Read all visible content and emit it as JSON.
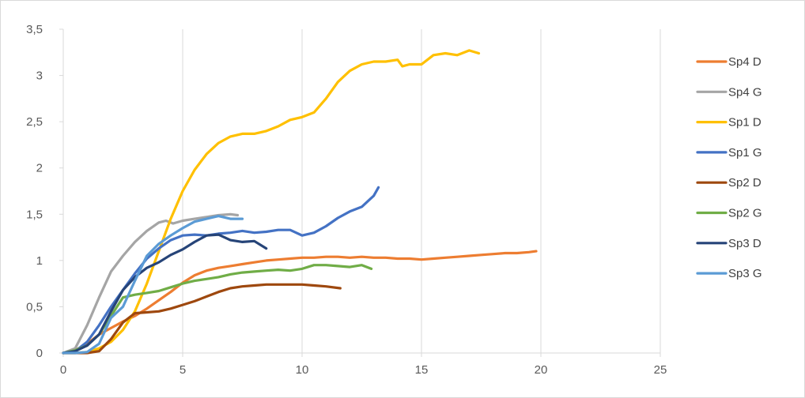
{
  "chart_data": {
    "type": "line",
    "title": "",
    "xlabel": "",
    "ylabel": "",
    "xlim": [
      0,
      25
    ],
    "ylim": [
      0,
      3.5
    ],
    "x_ticks": [
      0,
      5,
      10,
      15,
      20,
      25
    ],
    "y_ticks": [
      0,
      0.5,
      1,
      1.5,
      2,
      2.5,
      3,
      3.5
    ],
    "x_tick_labels": [
      "0",
      "5",
      "10",
      "15",
      "20",
      "25"
    ],
    "y_tick_labels": [
      "0",
      "0,5",
      "1",
      "1,5",
      "2",
      "2,5",
      "3",
      "3,5"
    ],
    "grid": "vertical",
    "legend_position": "right",
    "series": [
      {
        "name": "Sp4 D",
        "color": "#ED7D31",
        "x": [
          0,
          0.5,
          1,
          1.5,
          2,
          2.5,
          3,
          3.5,
          4,
          4.5,
          5,
          5.5,
          6,
          6.5,
          7,
          7.5,
          8,
          8.5,
          9,
          9.5,
          10,
          10.5,
          11,
          11.5,
          12,
          12.5,
          13,
          13.5,
          14,
          14.5,
          15,
          15.5,
          16,
          16.5,
          17,
          17.5,
          18,
          18.5,
          19,
          19.5,
          19.8
        ],
        "y": [
          0,
          0.03,
          0.1,
          0.2,
          0.27,
          0.34,
          0.4,
          0.48,
          0.57,
          0.66,
          0.76,
          0.84,
          0.89,
          0.92,
          0.94,
          0.96,
          0.98,
          1.0,
          1.01,
          1.02,
          1.03,
          1.03,
          1.04,
          1.04,
          1.03,
          1.04,
          1.03,
          1.03,
          1.02,
          1.02,
          1.01,
          1.02,
          1.03,
          1.04,
          1.05,
          1.06,
          1.07,
          1.08,
          1.08,
          1.09,
          1.1
        ]
      },
      {
        "name": "Sp4 G",
        "color": "#A5A5A5",
        "x": [
          0,
          0.5,
          1,
          1.5,
          2,
          2.5,
          3,
          3.5,
          4,
          4.3,
          4.6,
          5,
          5.5,
          6,
          6.5,
          7,
          7.3
        ],
        "y": [
          0,
          0.05,
          0.3,
          0.6,
          0.88,
          1.05,
          1.2,
          1.32,
          1.41,
          1.43,
          1.4,
          1.43,
          1.45,
          1.47,
          1.49,
          1.5,
          1.49
        ]
      },
      {
        "name": "Sp1 D",
        "color": "#FFC000",
        "x": [
          0,
          0.5,
          1,
          1.5,
          2,
          2.5,
          3,
          3.5,
          4,
          4.5,
          5,
          5.5,
          6,
          6.5,
          7,
          7.5,
          8,
          8.5,
          9,
          9.5,
          10,
          10.5,
          11,
          11.5,
          12,
          12.5,
          13,
          13.5,
          14,
          14.2,
          14.5,
          15,
          15.5,
          16,
          16.5,
          17,
          17.4
        ],
        "y": [
          0,
          0,
          0.01,
          0.05,
          0.12,
          0.25,
          0.45,
          0.75,
          1.1,
          1.45,
          1.75,
          1.98,
          2.15,
          2.27,
          2.34,
          2.37,
          2.37,
          2.4,
          2.45,
          2.52,
          2.55,
          2.6,
          2.75,
          2.93,
          3.05,
          3.12,
          3.15,
          3.15,
          3.17,
          3.1,
          3.12,
          3.12,
          3.22,
          3.24,
          3.22,
          3.27,
          3.24
        ]
      },
      {
        "name": "Sp1 G",
        "color": "#4472C4",
        "x": [
          0,
          0.5,
          1,
          1.5,
          2,
          2.5,
          3,
          3.5,
          4,
          4.5,
          5,
          5.5,
          6,
          6.5,
          7,
          7.5,
          8,
          8.5,
          9,
          9.5,
          10,
          10.5,
          11,
          11.5,
          12,
          12.5,
          13,
          13.2
        ],
        "y": [
          0,
          0.02,
          0.12,
          0.3,
          0.5,
          0.68,
          0.86,
          1.02,
          1.13,
          1.22,
          1.27,
          1.28,
          1.27,
          1.29,
          1.3,
          1.32,
          1.3,
          1.31,
          1.33,
          1.33,
          1.27,
          1.3,
          1.37,
          1.46,
          1.53,
          1.58,
          1.7,
          1.79
        ]
      },
      {
        "name": "Sp2 D",
        "color": "#9E480E",
        "x": [
          0,
          0.5,
          1,
          1.5,
          2,
          2.5,
          3,
          3.5,
          4,
          4.5,
          5,
          5.5,
          6,
          6.5,
          7,
          7.5,
          8,
          8.5,
          9,
          9.5,
          10,
          10.5,
          11,
          11.6
        ],
        "y": [
          0,
          0,
          0,
          0.02,
          0.15,
          0.33,
          0.43,
          0.44,
          0.45,
          0.48,
          0.52,
          0.56,
          0.61,
          0.66,
          0.7,
          0.72,
          0.73,
          0.74,
          0.74,
          0.74,
          0.74,
          0.73,
          0.72,
          0.7
        ]
      },
      {
        "name": "Sp2 G",
        "color": "#70AD47",
        "x": [
          0,
          0.5,
          1,
          1.5,
          2,
          2.5,
          3,
          3.5,
          4,
          4.5,
          5,
          5.5,
          6,
          6.5,
          7,
          7.5,
          8,
          8.5,
          9,
          9.5,
          10,
          10.5,
          11,
          11.5,
          12,
          12.5,
          12.9
        ],
        "y": [
          0,
          0.03,
          0.08,
          0.2,
          0.4,
          0.6,
          0.63,
          0.65,
          0.67,
          0.71,
          0.75,
          0.78,
          0.8,
          0.82,
          0.85,
          0.87,
          0.88,
          0.89,
          0.9,
          0.89,
          0.91,
          0.95,
          0.95,
          0.94,
          0.93,
          0.95,
          0.91
        ]
      },
      {
        "name": "Sp3 D",
        "color": "#264478",
        "x": [
          0,
          0.5,
          1,
          1.5,
          2,
          2.5,
          3,
          3.5,
          4,
          4.5,
          5,
          5.5,
          6,
          6.5,
          7,
          7.5,
          8,
          8.5
        ],
        "y": [
          0,
          0.02,
          0.08,
          0.2,
          0.45,
          0.68,
          0.82,
          0.92,
          0.98,
          1.06,
          1.12,
          1.2,
          1.27,
          1.28,
          1.22,
          1.2,
          1.21,
          1.13
        ]
      },
      {
        "name": "Sp3 G",
        "color": "#5B9BD5",
        "x": [
          0,
          0.5,
          1,
          1.5,
          2,
          2.5,
          3,
          3.5,
          4,
          4.5,
          5,
          5.5,
          6,
          6.5,
          7,
          7.5
        ],
        "y": [
          0,
          0,
          0.01,
          0.1,
          0.38,
          0.5,
          0.78,
          1.05,
          1.18,
          1.27,
          1.35,
          1.42,
          1.45,
          1.48,
          1.45,
          1.45
        ]
      }
    ]
  }
}
